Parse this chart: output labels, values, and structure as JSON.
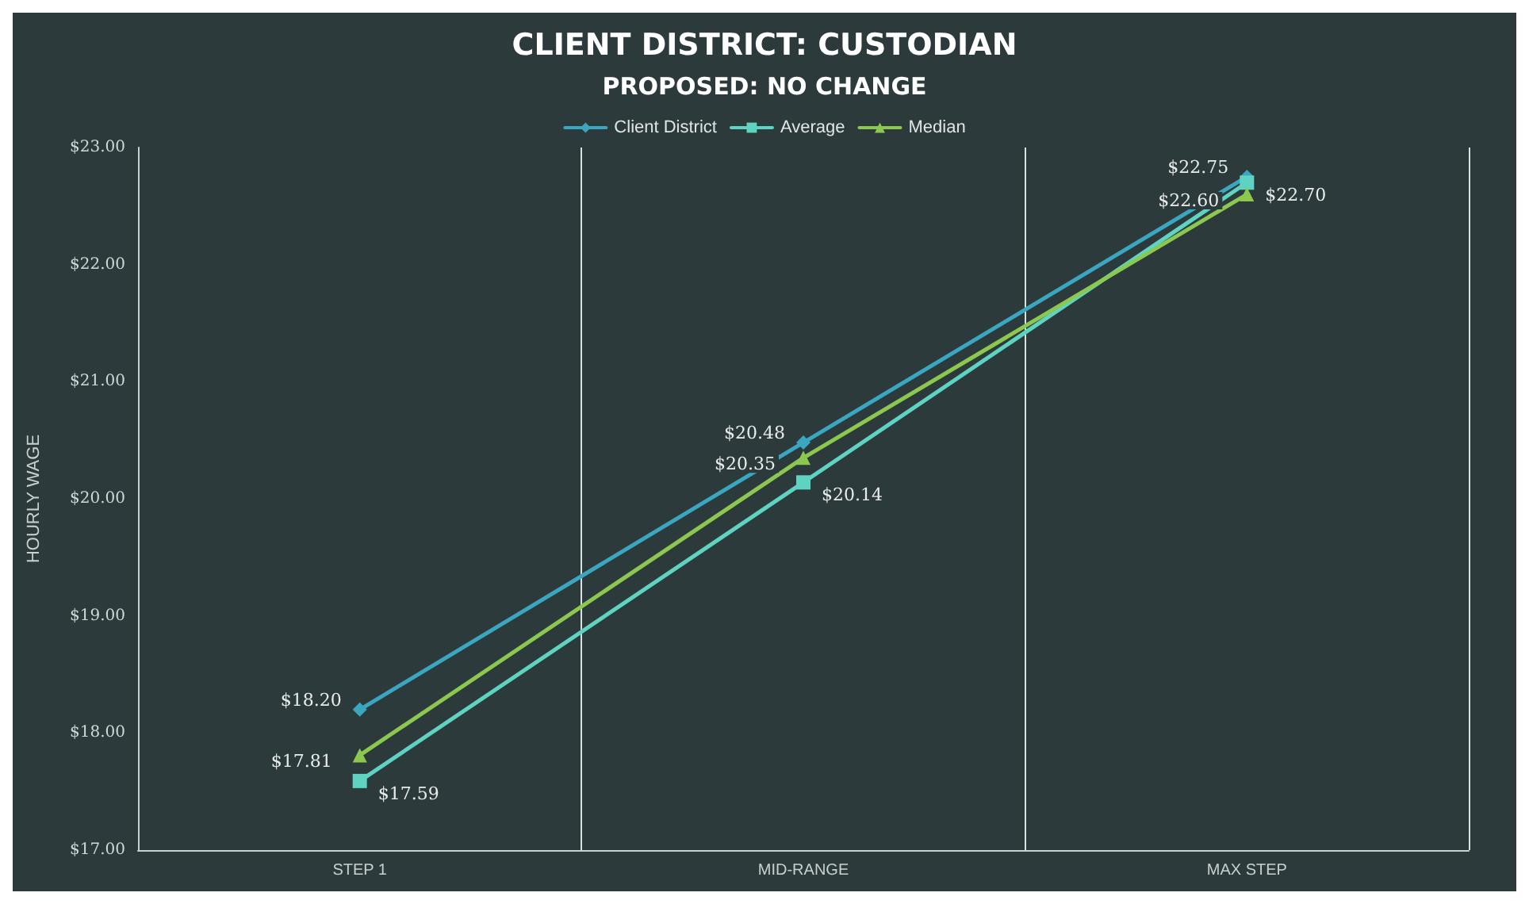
{
  "chart_data": {
    "type": "line",
    "title": "CLIENT DISTRICT: CUSTODIAN",
    "subtitle": "PROPOSED: NO CHANGE",
    "ylabel": "HOURLY WAGE",
    "categories": [
      "STEP 1",
      "MID-RANGE",
      "MAX STEP"
    ],
    "series": [
      {
        "name": "Client District",
        "color": "#3aa6c0",
        "marker": "diamond",
        "values": [
          18.2,
          20.48,
          22.75
        ],
        "value_labels": [
          "$18.20",
          "$20.48",
          "$22.75"
        ]
      },
      {
        "name": "Average",
        "color": "#5fd3c2",
        "marker": "square",
        "values": [
          17.59,
          20.14,
          22.7
        ],
        "value_labels": [
          "$17.59",
          "$20.14",
          "$22.70"
        ]
      },
      {
        "name": "Median",
        "color": "#8cc84f",
        "marker": "triangle",
        "values": [
          17.81,
          20.35,
          22.6
        ],
        "value_labels": [
          "$17.81",
          "$20.35",
          "$22.60"
        ]
      }
    ],
    "ylim": [
      17,
      23
    ],
    "yticks": [
      {
        "value": 17,
        "label": "$17.00"
      },
      {
        "value": 18,
        "label": "$18.00"
      },
      {
        "value": 19,
        "label": "$19.00"
      },
      {
        "value": 20,
        "label": "$20.00"
      },
      {
        "value": 21,
        "label": "$21.00"
      },
      {
        "value": 22,
        "label": "$22.00"
      },
      {
        "value": 23,
        "label": "$23.00"
      }
    ],
    "grid": "x",
    "legend": "top"
  }
}
